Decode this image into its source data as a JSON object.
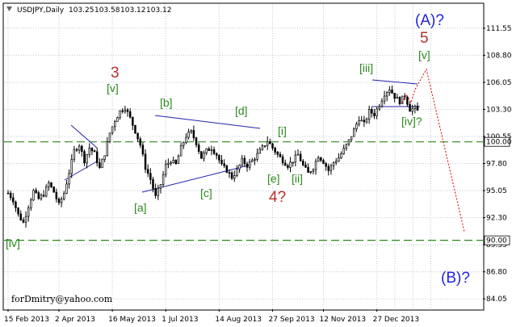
{
  "chart_data": {
    "type": "candlestick",
    "title": "USDJPY,Daily",
    "ohlc": {
      "open": "103.25",
      "high": "103.58",
      "low": "103.12",
      "close": "103.12"
    },
    "x_ticks": [
      "15 Feb 2013",
      "2 Apr 2013",
      "16 May 2013",
      "1 Jul 2013",
      "14 Aug 2013",
      "27 Sep 2013",
      "12 Nov 2013",
      "27 Dec 2013"
    ],
    "y_ticks": [
      "111.55",
      "108.80",
      "106.05",
      "103.30",
      "100.55",
      "97.80",
      "95.05",
      "92.30",
      "89.55",
      "86.80",
      "84.05"
    ],
    "ylim": [
      83.0,
      114.0
    ],
    "price_markers": [
      {
        "label": "100.00",
        "value": 100.0
      },
      {
        "label": "90.00",
        "value": 90.0
      }
    ],
    "close_path": [
      [
        0,
        94.8
      ],
      [
        2,
        94.1
      ],
      [
        4,
        92.6
      ],
      [
        6,
        91.8
      ],
      [
        8,
        93.5
      ],
      [
        10,
        95.0
      ],
      [
        12,
        94.2
      ],
      [
        14,
        94.7
      ],
      [
        16,
        95.8
      ],
      [
        18,
        94.9
      ],
      [
        20,
        93.6
      ],
      [
        22,
        94.8
      ],
      [
        24,
        96.9
      ],
      [
        26,
        99.1
      ],
      [
        28,
        99.7
      ],
      [
        30,
        98.1
      ],
      [
        32,
        99.4
      ],
      [
        34,
        98.8
      ],
      [
        36,
        97.3
      ],
      [
        38,
        98.8
      ],
      [
        40,
        100.9
      ],
      [
        42,
        102.2
      ],
      [
        44,
        103.1
      ],
      [
        46,
        103.5
      ],
      [
        48,
        102.4
      ],
      [
        50,
        101.1
      ],
      [
        52,
        99.7
      ],
      [
        54,
        97.4
      ],
      [
        56,
        96.2
      ],
      [
        58,
        94.4
      ],
      [
        60,
        95.7
      ],
      [
        62,
        97.6
      ],
      [
        64,
        98.1
      ],
      [
        66,
        97.7
      ],
      [
        68,
        99.4
      ],
      [
        70,
        100.6
      ],
      [
        72,
        101.0
      ],
      [
        74,
        99.9
      ],
      [
        76,
        98.4
      ],
      [
        78,
        99.1
      ],
      [
        80,
        99.4
      ],
      [
        82,
        98.7
      ],
      [
        84,
        97.6
      ],
      [
        86,
        97.1
      ],
      [
        88,
        96.4
      ],
      [
        90,
        97.1
      ],
      [
        92,
        98.1
      ],
      [
        94,
        97.6
      ],
      [
        96,
        98.1
      ],
      [
        98,
        98.7
      ],
      [
        100,
        99.4
      ],
      [
        102,
        100.1
      ],
      [
        104,
        99.4
      ],
      [
        106,
        98.7
      ],
      [
        108,
        98.1
      ],
      [
        110,
        97.6
      ],
      [
        112,
        98.1
      ],
      [
        114,
        98.7
      ],
      [
        116,
        97.6
      ],
      [
        118,
        96.8
      ],
      [
        120,
        97.4
      ],
      [
        122,
        98.6
      ],
      [
        124,
        98.0
      ],
      [
        126,
        97.1
      ],
      [
        128,
        97.9
      ],
      [
        130,
        98.4
      ],
      [
        132,
        99.2
      ],
      [
        134,
        100.1
      ],
      [
        136,
        101.2
      ],
      [
        138,
        102.4
      ],
      [
        140,
        101.8
      ],
      [
        142,
        103.1
      ],
      [
        144,
        102.8
      ],
      [
        146,
        103.8
      ],
      [
        148,
        104.9
      ],
      [
        150,
        105.4
      ],
      [
        152,
        104.6
      ],
      [
        154,
        104.1
      ],
      [
        156,
        104.7
      ],
      [
        158,
        103.3
      ],
      [
        160,
        103.4
      ],
      [
        161,
        103.12
      ]
    ],
    "annotations": [
      {
        "text": "(A)?",
        "color": "#2222dd"
      },
      {
        "text": "5",
        "color": "#b5302a"
      },
      {
        "text": "[v]",
        "color": "#2d8a1e"
      },
      {
        "text": "[iii]",
        "color": "#2d8a1e"
      },
      {
        "text": "[iv]?",
        "color": "#2d8a1e"
      },
      {
        "text": "3",
        "color": "#b5302a"
      },
      {
        "text": "[v]",
        "color": "#2d8a1e"
      },
      {
        "text": "[b]",
        "color": "#2d8a1e"
      },
      {
        "text": "[d]",
        "color": "#2d8a1e"
      },
      {
        "text": "[i]",
        "color": "#2d8a1e"
      },
      {
        "text": "[e]",
        "color": "#2d8a1e"
      },
      {
        "text": "[ii]",
        "color": "#2d8a1e"
      },
      {
        "text": "4?",
        "color": "#b5302a"
      },
      {
        "text": "[c]",
        "color": "#2d8a1e"
      },
      {
        "text": "[a]",
        "color": "#2d8a1e"
      },
      {
        "text": "[iv]",
        "color": "#2d8a1e"
      },
      {
        "text": "(B)?",
        "color": "#2222dd"
      }
    ],
    "credit": "forDmitry@yahoo.com",
    "colors": {
      "candle": "#000000",
      "grid": "#c0c8d8",
      "marker_line": "#2d8a1e",
      "trend": "#2222aa",
      "forecast": "#dd0000"
    }
  }
}
